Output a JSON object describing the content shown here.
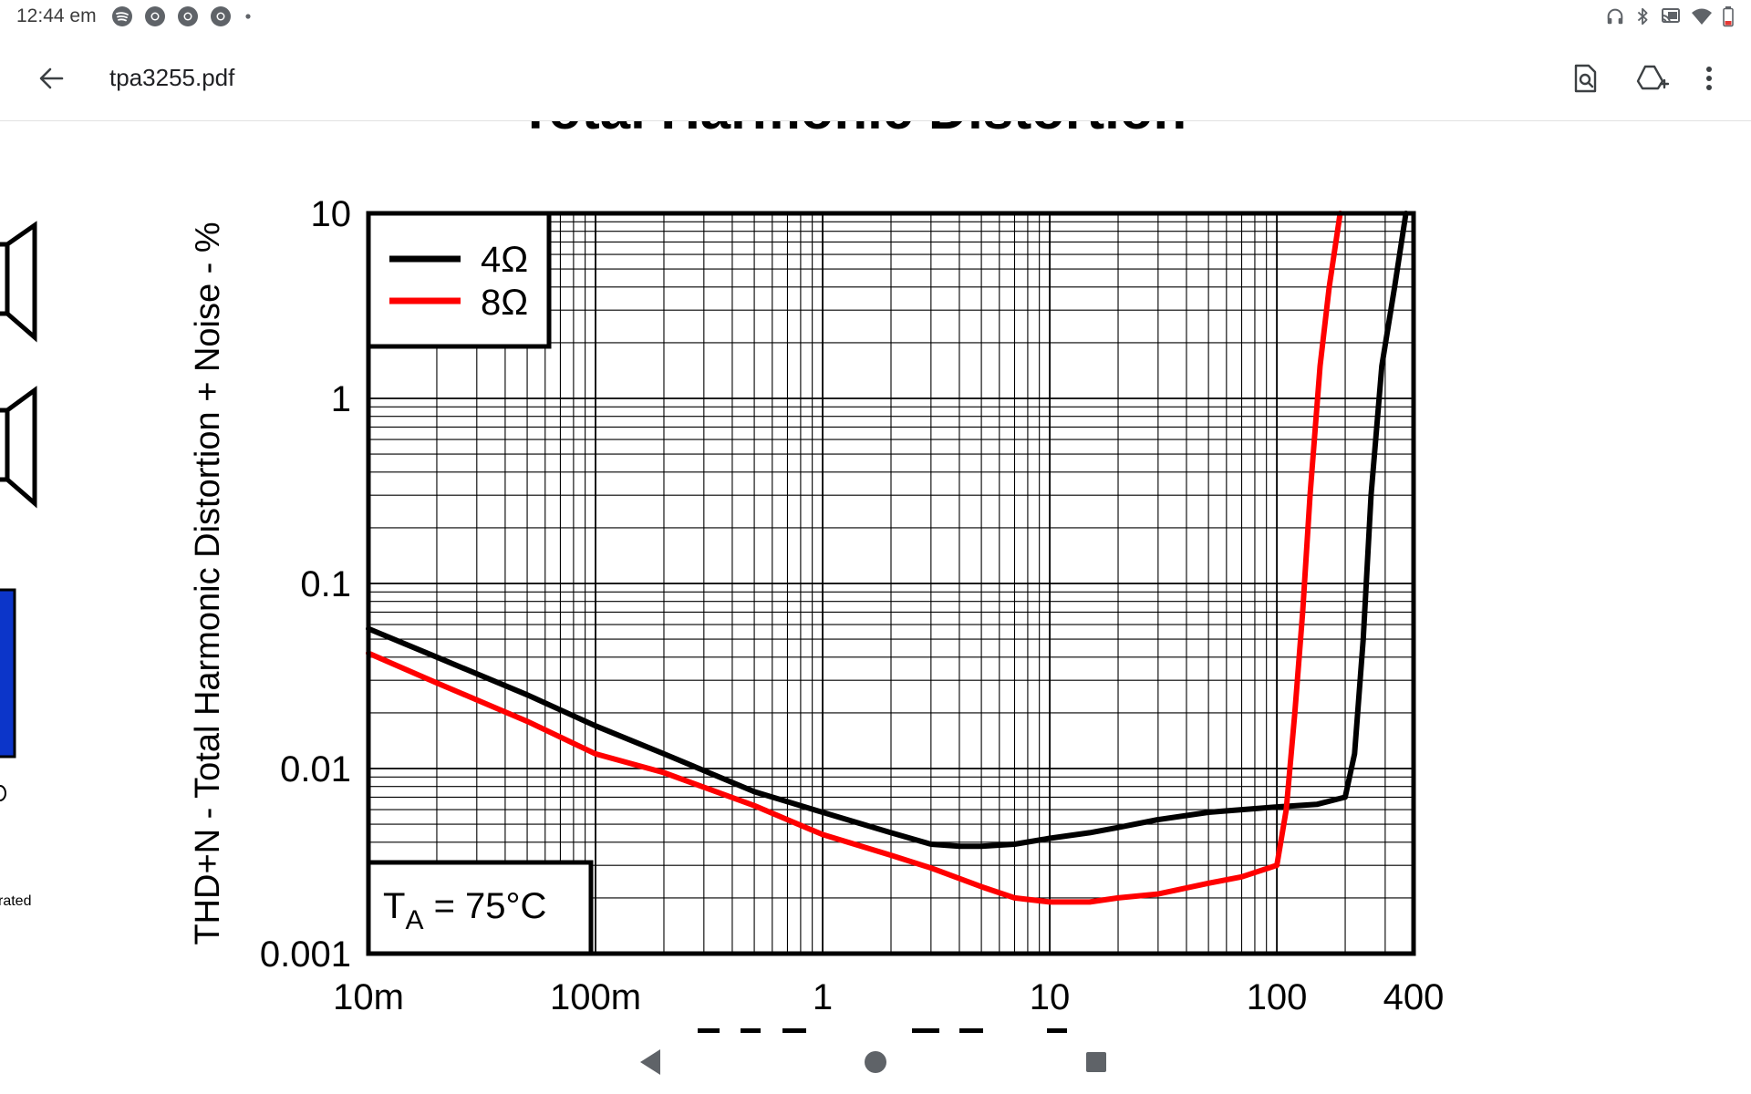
{
  "status_bar": {
    "time": "12:44 em",
    "left_icons": [
      "spotify-icon",
      "chrome-icon",
      "chrome-icon",
      "chrome-icon",
      "more-notifications-dot"
    ],
    "right_icons": [
      "headphones-icon",
      "bluetooth-icon",
      "cast-icon",
      "wifi-icon",
      "battery-low-icon"
    ]
  },
  "app_bar": {
    "back_icon": "arrow-left-icon",
    "title": "tpa3255.pdf",
    "actions": [
      "find-in-document-icon",
      "add-to-drive-icon",
      "more-vert-icon"
    ]
  },
  "page": {
    "clipped_caption": "rated",
    "partial_heading": "Total Harmonic Distortion"
  },
  "chart_data": {
    "type": "line",
    "title": "Total Harmonic Distortion",
    "xlabel": "",
    "ylabel": "THD+N - Total Harmonic Distortion + Noise - %",
    "x_scale": "log",
    "y_scale": "log",
    "xlim": [
      0.01,
      400
    ],
    "ylim": [
      0.001,
      10
    ],
    "x_ticks": [
      {
        "value": 0.01,
        "label": "10m"
      },
      {
        "value": 0.1,
        "label": "100m"
      },
      {
        "value": 1,
        "label": "1"
      },
      {
        "value": 10,
        "label": "10"
      },
      {
        "value": 100,
        "label": "100"
      },
      {
        "value": 400,
        "label": "400"
      }
    ],
    "y_ticks": [
      {
        "value": 0.001,
        "label": "0.001"
      },
      {
        "value": 0.01,
        "label": "0.01"
      },
      {
        "value": 0.1,
        "label": "0.1"
      },
      {
        "value": 1,
        "label": "1"
      },
      {
        "value": 10,
        "label": "10"
      }
    ],
    "grid": true,
    "legend_position": "top-left",
    "annotation": {
      "main": "T",
      "sub": "A",
      "rest": " = 75°C",
      "position": "bottom-left"
    },
    "series": [
      {
        "name": "4Ω",
        "color": "#000000",
        "points": [
          [
            0.01,
            0.057
          ],
          [
            0.02,
            0.04
          ],
          [
            0.05,
            0.025
          ],
          [
            0.1,
            0.017
          ],
          [
            0.2,
            0.012
          ],
          [
            0.5,
            0.0075
          ],
          [
            1,
            0.0058
          ],
          [
            2,
            0.0045
          ],
          [
            3,
            0.0039
          ],
          [
            4,
            0.0038
          ],
          [
            5,
            0.0038
          ],
          [
            7,
            0.0039
          ],
          [
            10,
            0.0042
          ],
          [
            15,
            0.0045
          ],
          [
            20,
            0.0048
          ],
          [
            30,
            0.0053
          ],
          [
            50,
            0.0058
          ],
          [
            100,
            0.0062
          ],
          [
            150,
            0.0064
          ],
          [
            200,
            0.007
          ],
          [
            220,
            0.012
          ],
          [
            240,
            0.05
          ],
          [
            260,
            0.3
          ],
          [
            290,
            1.5
          ],
          [
            330,
            4
          ],
          [
            370,
            10
          ]
        ]
      },
      {
        "name": "8Ω",
        "color": "#ff0000",
        "points": [
          [
            0.01,
            0.042
          ],
          [
            0.02,
            0.029
          ],
          [
            0.05,
            0.018
          ],
          [
            0.1,
            0.012
          ],
          [
            0.2,
            0.0095
          ],
          [
            0.5,
            0.0063
          ],
          [
            1,
            0.0044
          ],
          [
            2,
            0.0034
          ],
          [
            3,
            0.0029
          ],
          [
            5,
            0.0023
          ],
          [
            7,
            0.002
          ],
          [
            10,
            0.0019
          ],
          [
            15,
            0.0019
          ],
          [
            20,
            0.002
          ],
          [
            30,
            0.0021
          ],
          [
            50,
            0.0024
          ],
          [
            70,
            0.0026
          ],
          [
            100,
            0.003
          ],
          [
            110,
            0.006
          ],
          [
            120,
            0.02
          ],
          [
            130,
            0.07
          ],
          [
            140,
            0.3
          ],
          [
            155,
            1.5
          ],
          [
            170,
            4
          ],
          [
            190,
            10
          ]
        ]
      }
    ]
  },
  "left_partial": {
    "blue_block_color": "#0c35c9"
  },
  "nav_bar": {
    "buttons": [
      "back-triangle-icon",
      "home-circle-icon",
      "recents-square-icon"
    ]
  }
}
